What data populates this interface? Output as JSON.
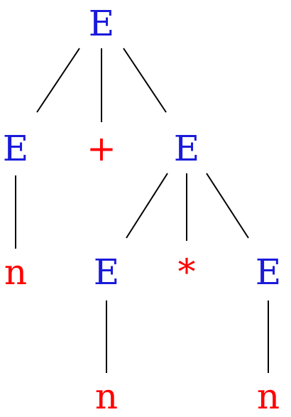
{
  "colors": {
    "nonterminal": "#1a1adb",
    "terminal": "#ff0000",
    "edge": "#000000"
  },
  "tree": {
    "root": {
      "label": "E",
      "kind": "nonterminal"
    },
    "level1": {
      "left": {
        "label": "E",
        "kind": "nonterminal"
      },
      "op": {
        "label": "+",
        "kind": "terminal"
      },
      "right": {
        "label": "E",
        "kind": "nonterminal"
      }
    },
    "level2": {
      "left_leaf": {
        "label": "n",
        "kind": "terminal"
      },
      "inner_left": {
        "label": "E",
        "kind": "nonterminal"
      },
      "inner_op": {
        "label": "*",
        "kind": "terminal"
      },
      "inner_right": {
        "label": "E",
        "kind": "nonterminal"
      }
    },
    "level3": {
      "leaf_under_inner_left": {
        "label": "n",
        "kind": "terminal"
      },
      "leaf_under_inner_right": {
        "label": "n",
        "kind": "terminal"
      }
    }
  }
}
